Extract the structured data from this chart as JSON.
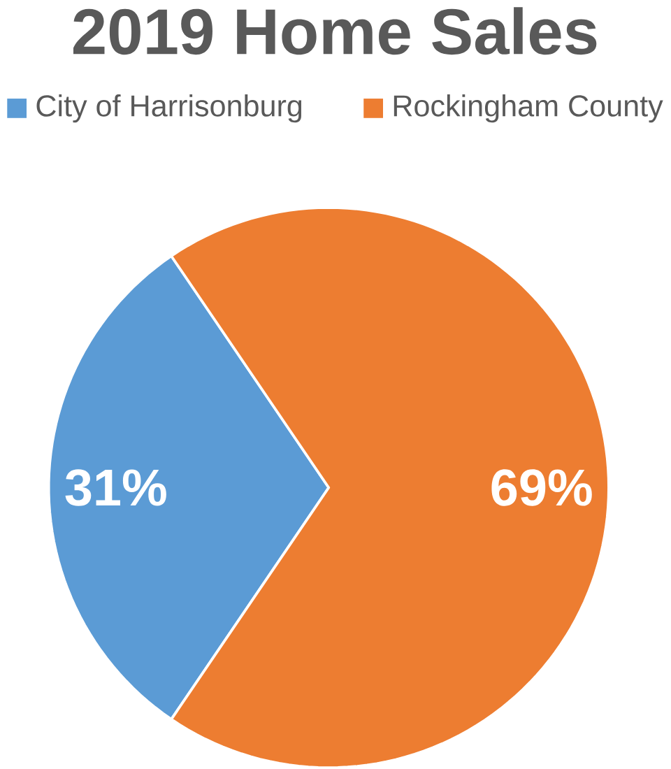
{
  "chart_data": {
    "type": "pie",
    "title": "2019 Home Sales",
    "categories": [
      "City of Harrisonburg",
      "Rockingham County"
    ],
    "values": [
      31,
      69
    ],
    "colors": [
      "#5b9bd5",
      "#ed7d31"
    ],
    "value_labels": [
      "31%",
      "69%"
    ],
    "legend": "top"
  }
}
